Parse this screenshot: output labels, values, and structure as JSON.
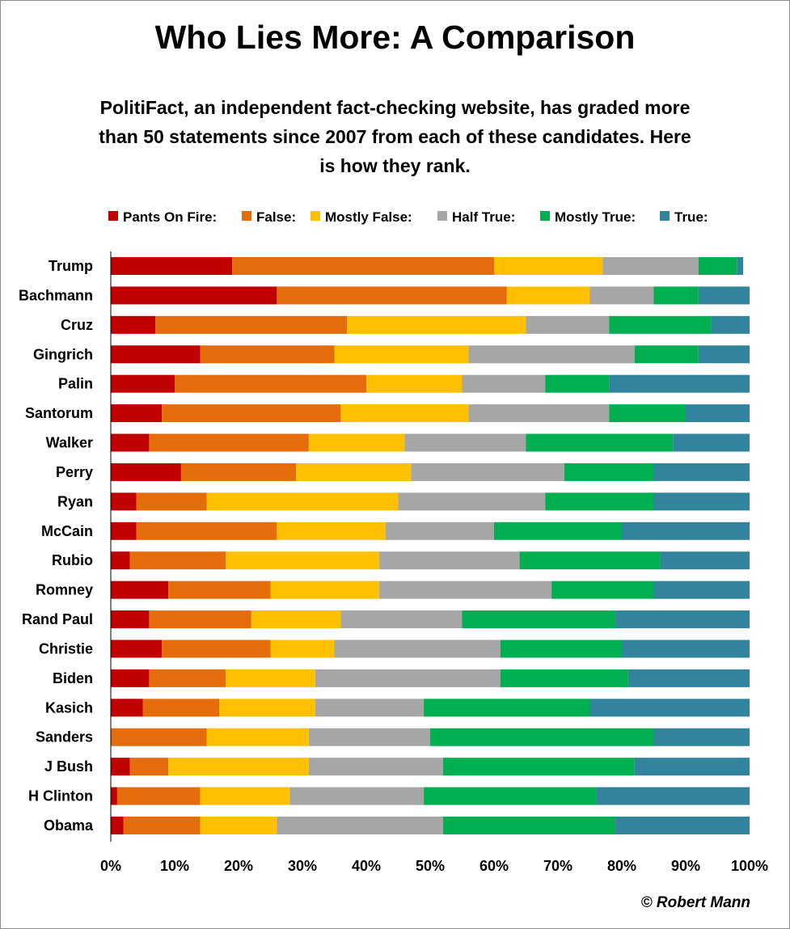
{
  "chart_data": {
    "type": "bar",
    "orientation": "horizontal",
    "stacked": "percent",
    "title": "Who Lies More: A Comparison",
    "subtitle": "PolitiFact, an independent fact-checking website, has graded more than 50 statements since 2007 from each of these candidates. Here is how they rank.",
    "credit": "© Robert Mann",
    "legend_position": "top",
    "grid": false,
    "xlim": [
      0,
      100
    ],
    "x_ticks": [
      "0%",
      "10%",
      "20%",
      "30%",
      "40%",
      "50%",
      "60%",
      "70%",
      "80%",
      "90%",
      "100%"
    ],
    "categories": [
      "Trump",
      "Bachmann",
      "Cruz",
      "Gingrich",
      "Palin",
      "Santorum",
      "Walker",
      "Perry",
      "Ryan",
      "McCain",
      "Rubio",
      "Romney",
      "Rand Paul",
      "Christie",
      "Biden",
      "Kasich",
      "Sanders",
      "J Bush",
      "H Clinton",
      "Obama"
    ],
    "series": [
      {
        "name": "Pants On Fire:",
        "color": "#C00000",
        "values": [
          19,
          26,
          7,
          14,
          10,
          8,
          6,
          11,
          4,
          4,
          3,
          9,
          6,
          8,
          6,
          5,
          0,
          3,
          1,
          2
        ]
      },
      {
        "name": "False:",
        "color": "#E46C0A",
        "values": [
          41,
          36,
          30,
          21,
          30,
          28,
          25,
          18,
          11,
          22,
          15,
          16,
          16,
          17,
          12,
          12,
          15,
          6,
          13,
          12
        ]
      },
      {
        "name": "Mostly False:",
        "color": "#FFC000",
        "values": [
          17,
          13,
          28,
          21,
          15,
          20,
          15,
          18,
          30,
          17,
          24,
          17,
          14,
          10,
          14,
          15,
          16,
          22,
          14,
          12
        ]
      },
      {
        "name": "Half True:",
        "color": "#A6A6A6",
        "values": [
          15,
          10,
          13,
          26,
          13,
          22,
          19,
          24,
          23,
          17,
          22,
          27,
          19,
          26,
          29,
          17,
          19,
          21,
          21,
          26
        ]
      },
      {
        "name": "Mostly True:",
        "color": "#00B050",
        "values": [
          6,
          7,
          16,
          10,
          10,
          12,
          23,
          14,
          17,
          20,
          22,
          16,
          24,
          19,
          20,
          26,
          35,
          30,
          27,
          27
        ]
      },
      {
        "name": "True:",
        "color": "#31849B",
        "values": [
          1,
          8,
          6,
          8,
          22,
          10,
          12,
          15,
          15,
          20,
          14,
          15,
          21,
          20,
          19,
          25,
          15,
          18,
          24,
          21
        ]
      }
    ]
  }
}
